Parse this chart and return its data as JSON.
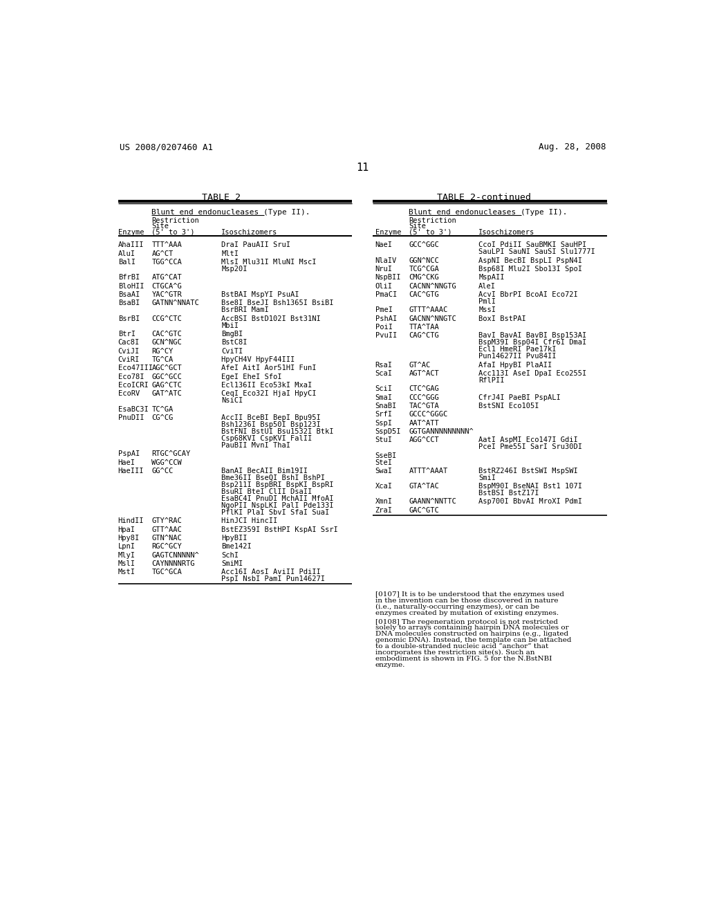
{
  "header_left": "US 2008/0207460 A1",
  "header_right": "Aug. 28, 2008",
  "page_number": "11",
  "table_title_left": "TABLE 2",
  "table_title_right": "TABLE 2-continued",
  "subtitle": "Blunt end endonucleases (Type II).",
  "left_table": [
    [
      "AhaIII",
      "TTT^AAA",
      "DraI PauAII SruI"
    ],
    [
      "AluI",
      "AG^CT",
      "MltI"
    ],
    [
      "BalI",
      "TGG^CCA",
      "MlsI Mlu31I MluNI MscI\nMsp20I"
    ],
    [
      "BfrBI",
      "ATG^CAT",
      ""
    ],
    [
      "BloHII",
      "CTGCA^G",
      ""
    ],
    [
      "BsaAI",
      "YAC^GTR",
      "BstBAI MspYI PsuAI"
    ],
    [
      "BsaBI",
      "GATNN^NNATC",
      "Bse8I BseJI Bsh1365I BsiBI\nBsrBRI MamI"
    ],
    [
      "BsrBI",
      "CCG^CTC",
      "AccBSI BstD102I Bst31NI\nMbiI"
    ],
    [
      "BtrI",
      "CAC^GTC",
      "BmgBI"
    ],
    [
      "Cac8I",
      "GCN^NGC",
      "BstC8I"
    ],
    [
      "CviJI",
      "RG^CY",
      "CviTI"
    ],
    [
      "CviRI",
      "TG^CA",
      "HpyCH4V HpyF44III"
    ],
    [
      "Eco47III",
      "AGC^GCT",
      "AfeI AitI Aor51HI FunI"
    ],
    [
      "Eco78I",
      "GGC^GCC",
      "EgeI EheI SfoI"
    ],
    [
      "EcoICRI",
      "GAG^CTC",
      "Ecl136II Eco53kI MxaI"
    ],
    [
      "EcoRV",
      "GAT^ATC",
      "CeqI Eco32I HjaI HpyCI\nNsiCI"
    ],
    [
      "EsaBC3I",
      "TC^GA",
      ""
    ],
    [
      "PnuDII",
      "CG^CG",
      "AccII BceBI BepI Bpu95I\nBsh1236I Bsp50I Bsp123I\nBstFNI BstUI Bsu1532I BtkI\nCsp68KVI CspKVI FalII\nPauBII MvnI ThaI"
    ],
    [
      "PspAI",
      "RTGC^GCAY",
      ""
    ],
    [
      "HaeI",
      "WGG^CCW",
      ""
    ],
    [
      "HaeIII",
      "GG^CC",
      "BanAI BecAII Bim19II\nBme36II BseQI BshI BshPI\nBsp211I BspBRI BspKI BspRI\nBsuRI BteI ClII DsaII\nEsaBC4I PnuDI MchAII MfoAI\nNgoPII NspLKI PalI Pde133I\nPflKI PlaI SbvI SfaI SuaI"
    ],
    [
      "HindII",
      "GTY^RAC",
      "HinJCI HincII"
    ],
    [
      "HpaI",
      "GTT^AAC",
      "BstEZ359I BstHPI KspAI SsrI"
    ],
    [
      "Hpy8I",
      "GTN^NAC",
      "HpyBII"
    ],
    [
      "LpnI",
      "RGC^GCY",
      "Bme142I"
    ],
    [
      "MlyI",
      "GAGTCNNNNN^",
      "SchI"
    ],
    [
      "MslI",
      "CAYNNNNRTG",
      "SmiMI"
    ],
    [
      "MstI",
      "TGC^GCA",
      "Acc16I AosI AviII PdiII\nPspI NsbI PamI Pun14627I"
    ]
  ],
  "right_table": [
    [
      "NaeI",
      "GCC^GGC",
      "CcoI PdiII SauBMKI SauHPI\nSauLPI SauNI SauSI Slu1777I"
    ],
    [
      "NlaIV",
      "GGN^NCC",
      "AspNI BecBI BspLI PspN4I"
    ],
    [
      "NruI",
      "TCG^CGA",
      "Bsp68I Mlu2I Sbo13I SpoI"
    ],
    [
      "NspBII",
      "CMG^CKG",
      "MspAII"
    ],
    [
      "OliI",
      "CACNN^NNGTG",
      "AleI"
    ],
    [
      "PmaCI",
      "CAC^GTG",
      "AcvI BbrPI BcoAI Eco72I\nPmlI"
    ],
    [
      "PmeI",
      "GTTT^AAAC",
      "MssI"
    ],
    [
      "PshAI",
      "GACNN^NNGTC",
      "BoxI BstPAI"
    ],
    [
      "PoiI",
      "TTA^TAA",
      ""
    ],
    [
      "PvuII",
      "CAG^CTG",
      "BavI BavAI BavBI Bsp153AI\nBspM39I Bsp04I Cfr6I DmaI\nEcl1 HmeRI Pae17kI\nPun14627II Pvu84II"
    ],
    [
      "RsaI",
      "GT^AC",
      "AfaI HpyBI PlaAII"
    ],
    [
      "ScaI",
      "AGT^ACT",
      "Acc113I AseI DpaI Eco255I\nRflPII"
    ],
    [
      "SciI",
      "CTC^GAG",
      ""
    ],
    [
      "SmaI",
      "CCC^GGG",
      "CfrJ4I PaeBI PspALI"
    ],
    [
      "SnaBI",
      "TAC^GTA",
      "BstSNI Eco105I"
    ],
    [
      "SrfI",
      "GCCC^GGGC",
      ""
    ],
    [
      "SspI",
      "AAT^ATT",
      ""
    ],
    [
      "SspD5I",
      "GGTGANNNNNNNNN^",
      ""
    ],
    [
      "StuI",
      "AGG^CCT",
      "AatI AspMI Eco147I GdiI\nPceI Pme55I SarI Sru30DI"
    ],
    [
      "SseBI\nSteI",
      "",
      ""
    ],
    [
      "SwaI",
      "ATTT^AAAT",
      "BstRZ246I BstSWI MspSWI\nSmiI"
    ],
    [
      "XcaI",
      "GTA^TAC",
      "BspM90I BseNAI Bst1 107I\nBstBSI BstZ17I"
    ],
    [
      "XmnI",
      "GAANN^NNTTC",
      "Asp700I BbvAI MroXI PdmI"
    ],
    [
      "ZraI",
      "GAC^GTC",
      ""
    ]
  ],
  "para_0107": "[0107]   It is to be understood that the enzymes used in the invention can be those discovered in nature (i.e., naturally-occurring enzymes), or can be enzymes created by mutation of existing enzymes.",
  "para_0108": "[0108]   The regeneration protocol is not restricted solely to arrays containing hairpin DNA molecules or DNA molecules constructed on hairpins (e.g., ligated genomic DNA). Instead, the template can be attached to a double-stranded nucleic acid “anchor” that incorporates the restriction site(s). Such an embodiment is shown in FIG. 5 for the N.BstNBI enzyme.",
  "bg_color": "#ffffff",
  "text_color": "#000000"
}
